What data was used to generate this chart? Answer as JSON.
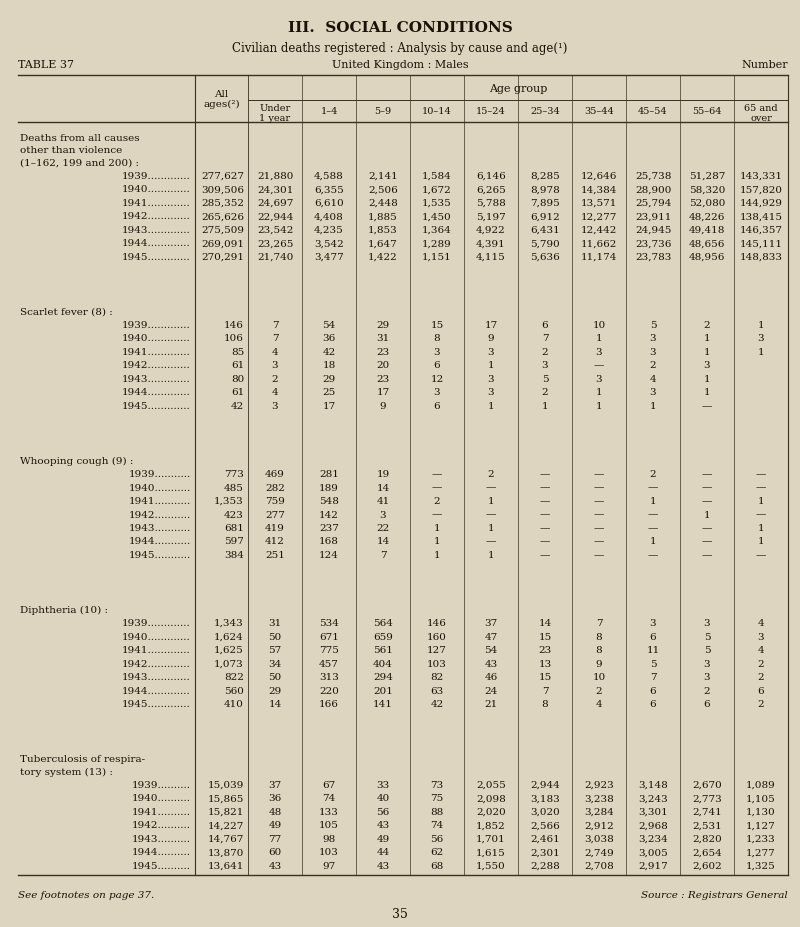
{
  "title_main": "III.  SOCIAL CONDITIONS",
  "title_sub": "Civilian deaths registered : Analysis by cause and age(¹)",
  "table_label": "TABLE 37",
  "table_center": "United Kingdom : Males",
  "table_right": "Number",
  "age_group_header": "Age group",
  "col_sub_headers": [
    "Under\n1 year",
    "1–4",
    "5–9",
    "10–14",
    "15–24",
    "25–34",
    "35–44",
    "45–54",
    "55–64",
    "65 and\nover"
  ],
  "all_ages_header": "All\nages(²)",
  "sections": [
    {
      "label": "Deaths from all causes\nother than violence\n(1–162, 199 and 200) :",
      "label_lines": 3,
      "rows": [
        {
          "year": "1939",
          "dots": ".............",
          "vals": [
            "277,627",
            "21,880",
            "4,588",
            "2,141",
            "1,584",
            "6,146",
            "8,285",
            "12,646",
            "25,738",
            "51,287",
            "143,331"
          ]
        },
        {
          "year": "1940",
          "dots": ".............",
          "vals": [
            "309,506",
            "24,301",
            "6,355",
            "2,506",
            "1,672",
            "6,265",
            "8,978",
            "14,384",
            "28,900",
            "58,320",
            "157,820"
          ]
        },
        {
          "year": "1941",
          "dots": ".............",
          "vals": [
            "285,352",
            "24,697",
            "6,610",
            "2,448",
            "1,535",
            "5,788",
            "7,895",
            "13,571",
            "25,794",
            "52,080",
            "144,929"
          ]
        },
        {
          "year": "1942",
          "dots": ".............",
          "vals": [
            "265,626",
            "22,944",
            "4,408",
            "1,885",
            "1,450",
            "5,197",
            "6,912",
            "12,277",
            "23,911",
            "48,226",
            "138,415"
          ]
        },
        {
          "year": "1943",
          "dots": ".............",
          "vals": [
            "275,509",
            "23,542",
            "4,235",
            "1,853",
            "1,364",
            "4,922",
            "6,431",
            "12,442",
            "24,945",
            "49,418",
            "146,357"
          ]
        },
        {
          "year": "1944",
          "dots": ".............",
          "vals": [
            "269,091",
            "23,265",
            "3,542",
            "1,647",
            "1,289",
            "4,391",
            "5,790",
            "11,662",
            "23,736",
            "48,656",
            "145,111"
          ]
        },
        {
          "year": "1945",
          "dots": ".............",
          "vals": [
            "270,291",
            "21,740",
            "3,477",
            "1,422",
            "1,151",
            "4,115",
            "5,636",
            "11,174",
            "23,783",
            "48,956",
            "148,833"
          ]
        }
      ]
    },
    {
      "label": "Scarlet fever (8) :",
      "label_lines": 1,
      "rows": [
        {
          "year": "1939",
          "dots": ".............",
          "vals": [
            "146",
            "7",
            "54",
            "29",
            "15",
            "17",
            "6",
            "10",
            "5",
            "2",
            "1"
          ]
        },
        {
          "year": "1940",
          "dots": ".............",
          "vals": [
            "106",
            "7",
            "36",
            "31",
            "8",
            "9",
            "7",
            "1",
            "3",
            "1",
            "3"
          ]
        },
        {
          "year": "1941",
          "dots": ".............",
          "vals": [
            "85",
            "4",
            "42",
            "23",
            "3",
            "3",
            "2",
            "3",
            "3",
            "1",
            "1"
          ]
        },
        {
          "year": "1942",
          "dots": ".............",
          "vals": [
            "61",
            "3",
            "18",
            "20",
            "6",
            "1",
            "3",
            "—",
            "2",
            "3",
            ""
          ]
        },
        {
          "year": "1943",
          "dots": ".............",
          "vals": [
            "80",
            "2",
            "29",
            "23",
            "12",
            "3",
            "5",
            "3",
            "4",
            "1",
            ""
          ]
        },
        {
          "year": "1944",
          "dots": ".............",
          "vals": [
            "61",
            "4",
            "25",
            "17",
            "3",
            "3",
            "2",
            "1",
            "3",
            "1",
            ""
          ]
        },
        {
          "year": "1945",
          "dots": ".............",
          "vals": [
            "42",
            "3",
            "17",
            "9",
            "6",
            "1",
            "1",
            "1",
            "1",
            "—",
            ""
          ]
        }
      ]
    },
    {
      "label": "Whooping cough (9) :",
      "label_lines": 1,
      "rows": [
        {
          "year": "1939",
          "dots": "...........",
          "vals": [
            "773",
            "469",
            "281",
            "19",
            "—",
            "2",
            "—",
            "—",
            "2",
            "—",
            "—"
          ]
        },
        {
          "year": "1940",
          "dots": "...........",
          "vals": [
            "485",
            "282",
            "189",
            "14",
            "—",
            "—",
            "—",
            "—",
            "—",
            "—",
            "—"
          ]
        },
        {
          "year": "1941",
          "dots": "...........",
          "vals": [
            "1,353",
            "759",
            "548",
            "41",
            "2",
            "1",
            "—",
            "—",
            "1",
            "—",
            "1"
          ]
        },
        {
          "year": "1942",
          "dots": "...........",
          "vals": [
            "423",
            "277",
            "142",
            "3",
            "—",
            "—",
            "—",
            "—",
            "—",
            "1",
            "—"
          ]
        },
        {
          "year": "1943",
          "dots": "...........",
          "vals": [
            "681",
            "419",
            "237",
            "22",
            "1",
            "1",
            "—",
            "—",
            "—",
            "—",
            "1"
          ]
        },
        {
          "year": "1944",
          "dots": "...........",
          "vals": [
            "597",
            "412",
            "168",
            "14",
            "1",
            "—",
            "—",
            "—",
            "1",
            "—",
            "1"
          ]
        },
        {
          "year": "1945",
          "dots": "...........",
          "vals": [
            "384",
            "251",
            "124",
            "7",
            "1",
            "1",
            "—",
            "—",
            "—",
            "—",
            "—"
          ]
        }
      ]
    },
    {
      "label": "Diphtheria (10) :",
      "label_lines": 1,
      "rows": [
        {
          "year": "1939",
          "dots": ".............",
          "vals": [
            "1,343",
            "31",
            "534",
            "564",
            "146",
            "37",
            "14",
            "7",
            "3",
            "3",
            "4"
          ]
        },
        {
          "year": "1940",
          "dots": ".............",
          "vals": [
            "1,624",
            "50",
            "671",
            "659",
            "160",
            "47",
            "15",
            "8",
            "6",
            "5",
            "3"
          ]
        },
        {
          "year": "1941",
          "dots": ".............",
          "vals": [
            "1,625",
            "57",
            "775",
            "561",
            "127",
            "54",
            "23",
            "8",
            "11",
            "5",
            "4"
          ]
        },
        {
          "year": "1942",
          "dots": ".............",
          "vals": [
            "1,073",
            "34",
            "457",
            "404",
            "103",
            "43",
            "13",
            "9",
            "5",
            "3",
            "2"
          ]
        },
        {
          "year": "1943",
          "dots": ".............",
          "vals": [
            "822",
            "50",
            "313",
            "294",
            "82",
            "46",
            "15",
            "10",
            "7",
            "3",
            "2"
          ]
        },
        {
          "year": "1944",
          "dots": ".............",
          "vals": [
            "560",
            "29",
            "220",
            "201",
            "63",
            "24",
            "7",
            "2",
            "6",
            "2",
            "6"
          ]
        },
        {
          "year": "1945",
          "dots": ".............",
          "vals": [
            "410",
            "14",
            "166",
            "141",
            "42",
            "21",
            "8",
            "4",
            "6",
            "6",
            "2"
          ]
        }
      ]
    },
    {
      "label": "Tuberculosis of respira-\ntory system (13) :",
      "label_lines": 2,
      "rows": [
        {
          "year": "1939",
          "dots": "..........",
          "vals": [
            "15,039",
            "37",
            "67",
            "33",
            "73",
            "2,055",
            "2,944",
            "2,923",
            "3,148",
            "2,670",
            "1,089"
          ]
        },
        {
          "year": "1940",
          "dots": "..........",
          "vals": [
            "15,865",
            "36",
            "74",
            "40",
            "75",
            "2,098",
            "3,183",
            "3,238",
            "3,243",
            "2,773",
            "1,105"
          ]
        },
        {
          "year": "1941",
          "dots": "..........",
          "vals": [
            "15,821",
            "48",
            "133",
            "56",
            "88",
            "2,020",
            "3,020",
            "3,284",
            "3,301",
            "2,741",
            "1,130"
          ]
        },
        {
          "year": "1942",
          "dots": "..........",
          "vals": [
            "14,227",
            "49",
            "105",
            "43",
            "74",
            "1,852",
            "2,566",
            "2,912",
            "2,968",
            "2,531",
            "1,127"
          ]
        },
        {
          "year": "1943",
          "dots": "..........",
          "vals": [
            "14,767",
            "77",
            "98",
            "49",
            "56",
            "1,701",
            "2,461",
            "3,038",
            "3,234",
            "2,820",
            "1,233"
          ]
        },
        {
          "year": "1944",
          "dots": "..........",
          "vals": [
            "13,870",
            "60",
            "103",
            "44",
            "62",
            "1,615",
            "2,301",
            "2,749",
            "3,005",
            "2,654",
            "1,277"
          ]
        },
        {
          "year": "1945",
          "dots": "..........",
          "vals": [
            "13,641",
            "43",
            "97",
            "43",
            "68",
            "1,550",
            "2,288",
            "2,708",
            "2,917",
            "2,602",
            "1,325"
          ]
        }
      ]
    }
  ],
  "footnote_left": "See footnotes on page 37.",
  "footnote_right": "Source : Registrars General",
  "page_number": "35",
  "bg_color": "#ddd5c0",
  "text_color": "#1a1206",
  "line_color": "#3a3020"
}
